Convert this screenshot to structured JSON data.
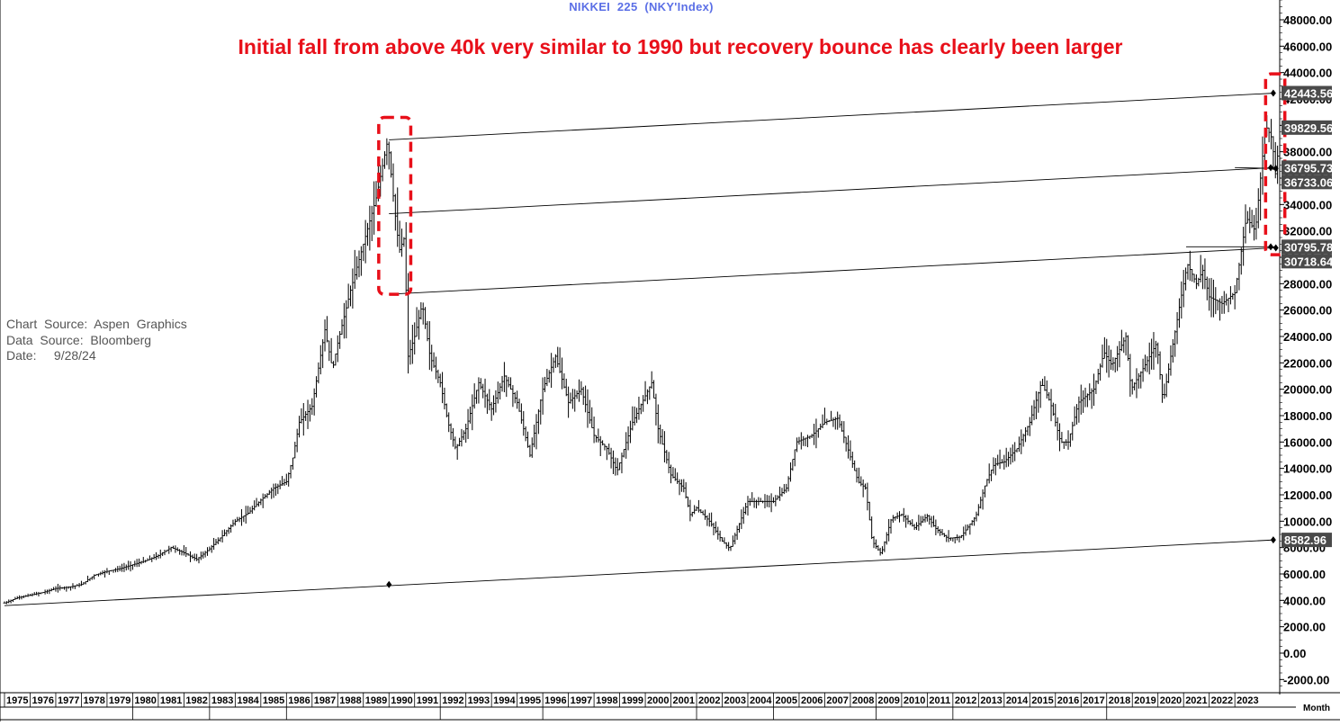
{
  "header": {
    "title": "NIKKEI  225  (NKY'Index)",
    "annotation": "Initial fall from above 40k very similar to 1990 but recovery bounce has clearly been larger"
  },
  "source": {
    "chart_source": "Chart  Source:  Aspen  Graphics",
    "data_source": "Data  Source:  Bloomberg",
    "date": "Date:     9/28/24"
  },
  "frequency_label": "Month",
  "colors": {
    "annotation_text": "#e8101a",
    "highlight_box": "#e8101a",
    "title_text": "#5b6fe6",
    "price_bars": "#000000",
    "label_box": "#4a4a4a",
    "label_text": "#ffffff"
  },
  "chart_data": {
    "type": "bar",
    "style": "OHLC monthly bars",
    "title": "NIKKEI  225  (NKY'Index)",
    "annotation": "Initial fall from above 40k very similar to 1990 but recovery bounce has clearly been larger",
    "x_range": [
      1975.0,
      2024.75
    ],
    "x_tick_labels": [
      "1975",
      "1976",
      "1977",
      "1978",
      "1979",
      "1980",
      "1981",
      "1982",
      "1983",
      "1984",
      "1985",
      "1986",
      "1987",
      "1988",
      "1989",
      "1990",
      "1991",
      "1992",
      "1993",
      "1994",
      "1995",
      "1996",
      "1997",
      "1998",
      "1999",
      "2000",
      "2001",
      "2002",
      "2003",
      "2004",
      "2005",
      "2006",
      "2007",
      "2008",
      "2009",
      "2010",
      "2011",
      "2012",
      "2013",
      "2014",
      "2015",
      "2016",
      "2017",
      "2018",
      "2019",
      "2020",
      "2021",
      "2022",
      "2023"
    ],
    "ylim": [
      -3000,
      49500
    ],
    "y_tick_values": [
      -2000,
      0,
      2000,
      4000,
      6000,
      8000,
      10000,
      12000,
      14000,
      16000,
      18000,
      20000,
      22000,
      24000,
      26000,
      28000,
      30000,
      32000,
      34000,
      36000,
      38000,
      40000,
      42000,
      44000,
      46000,
      48000
    ],
    "y_tick_labels": [
      "-2000.00",
      "0.00",
      "2000.00",
      "4000.00",
      "6000.00",
      "8000.00",
      "10000.00",
      "12000.00",
      "14000.00",
      "16000.00",
      "18000.00",
      "20000.00",
      "22000.00",
      "24000.00",
      "26000.00",
      "28000.00",
      "30000.00",
      "32000.00",
      "34000.00",
      "36000.00",
      "38000.00",
      "40000.00",
      "42000.00",
      "44000.00",
      "46000.00",
      "48000.00"
    ],
    "grid": false,
    "series": [
      {
        "points": [
          [
            1975.0,
            3800
          ],
          [
            1975.5,
            4200
          ],
          [
            1976.0,
            4400
          ],
          [
            1976.5,
            4600
          ],
          [
            1977.0,
            4900
          ],
          [
            1977.5,
            5000
          ],
          [
            1978.0,
            5200
          ],
          [
            1978.5,
            5900
          ],
          [
            1979.0,
            6200
          ],
          [
            1979.5,
            6400
          ],
          [
            1980.0,
            6700
          ],
          [
            1980.5,
            7000
          ],
          [
            1981.0,
            7400
          ],
          [
            1981.5,
            8000
          ],
          [
            1982.0,
            7600
          ],
          [
            1982.5,
            7100
          ],
          [
            1983.0,
            7900
          ],
          [
            1983.5,
            8900
          ],
          [
            1984.0,
            10000
          ],
          [
            1984.5,
            10600
          ],
          [
            1985.0,
            11600
          ],
          [
            1985.5,
            12500
          ],
          [
            1986.0,
            13000
          ],
          [
            1986.25,
            14800
          ],
          [
            1986.5,
            17500
          ],
          [
            1987.0,
            18700
          ],
          [
            1987.5,
            24500
          ],
          [
            1987.8,
            21500
          ],
          [
            1988.0,
            23500
          ],
          [
            1988.5,
            27500
          ],
          [
            1989.0,
            31000
          ],
          [
            1989.5,
            34500
          ],
          [
            1989.95,
            38900
          ],
          [
            1990.2,
            34000
          ],
          [
            1990.4,
            30500
          ],
          [
            1990.6,
            31500
          ],
          [
            1990.75,
            22500
          ],
          [
            1991.0,
            24000
          ],
          [
            1991.3,
            26500
          ],
          [
            1991.6,
            22500
          ],
          [
            1992.0,
            20500
          ],
          [
            1992.3,
            17500
          ],
          [
            1992.6,
            15500
          ],
          [
            1993.0,
            17000
          ],
          [
            1993.5,
            20500
          ],
          [
            1994.0,
            18500
          ],
          [
            1994.5,
            21000
          ],
          [
            1995.0,
            19000
          ],
          [
            1995.5,
            15000
          ],
          [
            1996.0,
            20000
          ],
          [
            1996.5,
            22500
          ],
          [
            1997.0,
            19000
          ],
          [
            1997.5,
            20000
          ],
          [
            1998.0,
            16500
          ],
          [
            1998.5,
            15500
          ],
          [
            1998.9,
            13800
          ],
          [
            1999.5,
            17500
          ],
          [
            2000.0,
            19500
          ],
          [
            2000.25,
            20500
          ],
          [
            2000.5,
            17000
          ],
          [
            2001.0,
            13500
          ],
          [
            2001.5,
            12500
          ],
          [
            2001.75,
            10500
          ],
          [
            2002.0,
            11000
          ],
          [
            2002.5,
            10000
          ],
          [
            2003.0,
            8500
          ],
          [
            2003.3,
            7900
          ],
          [
            2003.8,
            10500
          ],
          [
            2004.0,
            11500
          ],
          [
            2004.5,
            11500
          ],
          [
            2005.0,
            11500
          ],
          [
            2005.5,
            12500
          ],
          [
            2005.9,
            16000
          ],
          [
            2006.5,
            16500
          ],
          [
            2007.0,
            17500
          ],
          [
            2007.5,
            17800
          ],
          [
            2007.9,
            15500
          ],
          [
            2008.3,
            13000
          ],
          [
            2008.6,
            12500
          ],
          [
            2008.85,
            8500
          ],
          [
            2009.2,
            7500
          ],
          [
            2009.6,
            10200
          ],
          [
            2010.0,
            10500
          ],
          [
            2010.5,
            9500
          ],
          [
            2011.0,
            10400
          ],
          [
            2011.3,
            9500
          ],
          [
            2011.8,
            8700
          ],
          [
            2012.3,
            8800
          ],
          [
            2012.9,
            10400
          ],
          [
            2013.3,
            13000
          ],
          [
            2013.6,
            14300
          ],
          [
            2014.0,
            14500
          ],
          [
            2014.5,
            15500
          ],
          [
            2015.0,
            17500
          ],
          [
            2015.45,
            20500
          ],
          [
            2015.8,
            19000
          ],
          [
            2016.2,
            16000
          ],
          [
            2016.5,
            16000
          ],
          [
            2016.9,
            19000
          ],
          [
            2017.5,
            20000
          ],
          [
            2017.9,
            22800
          ],
          [
            2018.2,
            21800
          ],
          [
            2018.75,
            24000
          ],
          [
            2018.95,
            20000
          ],
          [
            2019.4,
            21500
          ],
          [
            2019.95,
            23500
          ],
          [
            2020.2,
            19000
          ],
          [
            2020.5,
            22500
          ],
          [
            2020.95,
            27500
          ],
          [
            2021.15,
            29500
          ],
          [
            2021.5,
            28000
          ],
          [
            2021.75,
            29000
          ],
          [
            2022.0,
            27000
          ],
          [
            2022.5,
            26500
          ],
          [
            2023.0,
            27300
          ],
          [
            2023.45,
            33000
          ],
          [
            2023.8,
            32000
          ],
          [
            2024.0,
            36000
          ],
          [
            2024.2,
            40000
          ],
          [
            2024.45,
            39000
          ],
          [
            2024.6,
            36000
          ],
          [
            2024.7,
            38500
          ],
          [
            2024.75,
            37500
          ]
        ]
      }
    ],
    "trend_lines": [
      {
        "from": [
          1975.0,
          3600
        ],
        "to": [
          2024.55,
          8582.96
        ]
      },
      {
        "from": [
          1990.0,
          38900
        ],
        "to": [
          2024.55,
          42443.56
        ]
      },
      {
        "from": [
          1990.0,
          33300
        ],
        "to": [
          2024.55,
          36795.73
        ]
      },
      {
        "from": [
          1990.0,
          27200
        ],
        "to": [
          2024.55,
          30718.64
        ]
      },
      {
        "from": [
          2021.1,
          30800
        ],
        "to": [
          2024.55,
          30795.78
        ]
      },
      {
        "from": [
          2023.0,
          36800
        ],
        "to": [
          2024.55,
          36733.06
        ]
      }
    ],
    "markers": [
      [
        1990.0,
        5200
      ],
      [
        2024.5,
        8582.96
      ],
      [
        2024.5,
        42443.56
      ],
      [
        2024.4,
        36795.73
      ],
      [
        2024.6,
        36733.06
      ],
      [
        2024.4,
        30795.78
      ],
      [
        2024.6,
        30718.64
      ]
    ],
    "price_labels": [
      {
        "value": 42443.56,
        "text": "42443.56"
      },
      {
        "value": 39829.56,
        "text": "39829.56"
      },
      {
        "value": 36795.73,
        "text": "36795.73"
      },
      {
        "value": 36733.06,
        "text": "36733.06"
      },
      {
        "value": 30795.78,
        "text": "30795.78"
      },
      {
        "value": 30718.64,
        "text": "30718.64"
      },
      {
        "value": 8582.96,
        "text": "8582.96"
      }
    ],
    "highlight_boxes": [
      {
        "x": [
          1989.6,
          1990.85
        ],
        "y": [
          27200,
          40600
        ]
      },
      {
        "x": [
          2024.2,
          2024.95
        ],
        "y": [
          30200,
          43900
        ]
      }
    ]
  }
}
